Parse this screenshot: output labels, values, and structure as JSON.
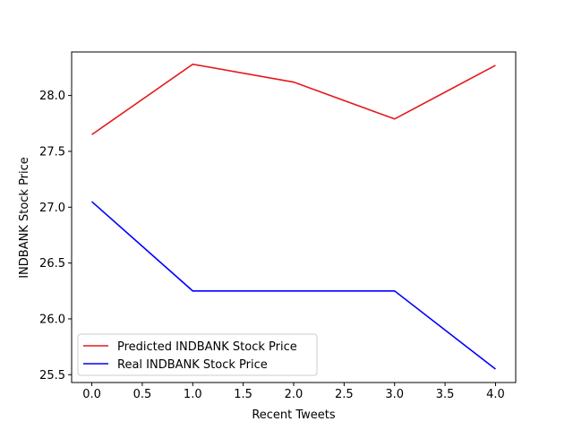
{
  "chart_data": {
    "type": "line",
    "title": "",
    "xlabel": "Recent Tweets",
    "ylabel": "INDBANK Stock Price",
    "x": [
      0,
      1,
      2,
      3,
      4
    ],
    "xlim": [
      -0.2,
      4.2
    ],
    "ylim": [
      25.43,
      28.39
    ],
    "xticks": [
      0.0,
      0.5,
      1.0,
      1.5,
      2.0,
      2.5,
      3.0,
      3.5,
      4.0
    ],
    "xtick_labels": [
      "0.0",
      "0.5",
      "1.0",
      "1.5",
      "2.0",
      "2.5",
      "3.0",
      "3.5",
      "4.0"
    ],
    "yticks": [
      25.5,
      26.0,
      26.5,
      27.0,
      27.5,
      28.0
    ],
    "ytick_labels": [
      "25.5",
      "26.0",
      "26.5",
      "27.0",
      "27.5",
      "28.0"
    ],
    "grid": false,
    "legend_position": "lower-left",
    "series": [
      {
        "name": "Predicted INDBANK Stock Price",
        "color": "#e41a1c",
        "values": [
          27.65,
          28.28,
          28.12,
          27.79,
          28.27
        ]
      },
      {
        "name": "Real INDBANK Stock Price",
        "color": "#0000ff",
        "values": [
          27.05,
          26.25,
          26.25,
          26.25,
          25.55
        ]
      }
    ]
  }
}
